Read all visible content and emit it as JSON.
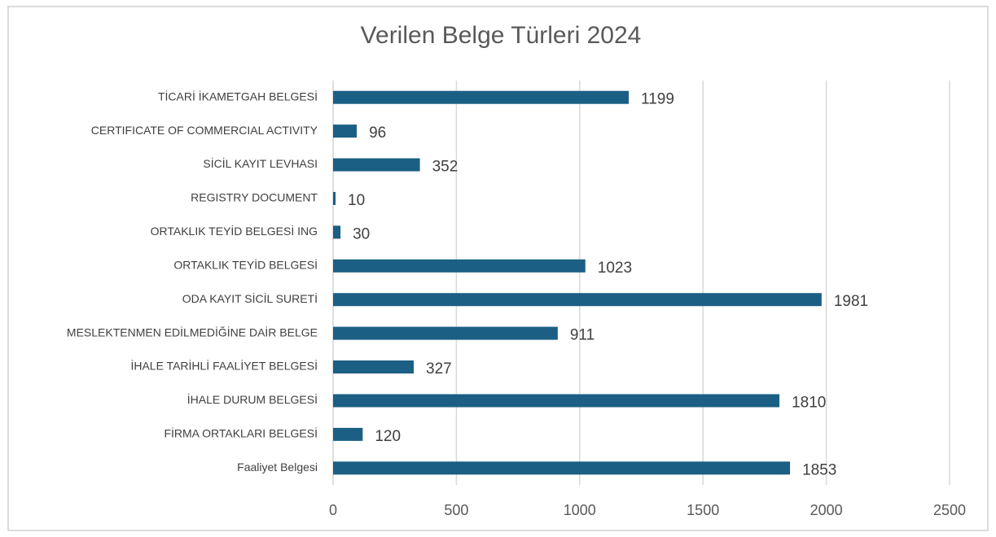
{
  "chart_data": {
    "type": "bar",
    "orientation": "horizontal",
    "title": "Verilen Belge Türleri 2024",
    "categories": [
      "TİCARİ İKAMETGAH BELGESİ",
      "CERTIFICATE OF COMMERCIAL ACTIVITY",
      "SİCİL KAYIT LEVHASI",
      "REGISTRY DOCUMENT",
      "ORTAKLIK TEYİD BELGESİ ING",
      "ORTAKLIK TEYİD BELGESİ",
      "ODA KAYIT SİCİL SURETİ",
      "MESLEKTENMEN EDİLMEDİĞİNE DAİR BELGE",
      "İHALE TARİHLİ FAALİYET BELGESİ",
      "İHALE DURUM BELGESİ",
      "FİRMA ORTAKLARI BELGESİ",
      "Faaliyet Belgesi"
    ],
    "values": [
      1199,
      96,
      352,
      10,
      30,
      1023,
      1981,
      911,
      327,
      1810,
      120,
      1853
    ],
    "color": "#1b5f84",
    "xlim": [
      0,
      2500
    ],
    "xticks": [
      0,
      500,
      1000,
      1500,
      2000,
      2500
    ],
    "grid": true
  }
}
